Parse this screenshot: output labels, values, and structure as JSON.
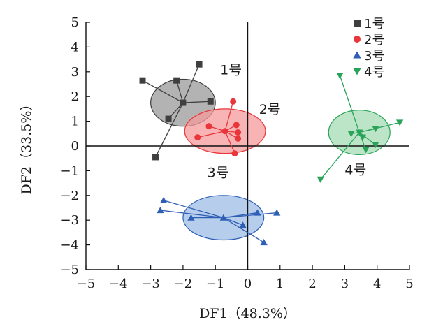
{
  "chart_data": {
    "type": "scatter",
    "xlabel": "DF1（48.3%）",
    "ylabel": "DF2（33.5%）",
    "xlim": [
      -5,
      5
    ],
    "ylim": [
      -5,
      5
    ],
    "x_ticks": [
      "−5",
      "−4",
      "−3",
      "−2",
      "−1",
      "0",
      "1",
      "2",
      "3",
      "4",
      "5"
    ],
    "y_ticks": [
      "−5",
      "−4",
      "−3",
      "−2",
      "−1",
      "0",
      "1",
      "2",
      "3",
      "4",
      "5"
    ],
    "legend_position": "top-right",
    "series": [
      {
        "name": "1号",
        "label": "1号",
        "marker": "square",
        "color": "#3f3f3f",
        "ellipse_fill": "#9a9a9a",
        "centroid": [
          -2.0,
          1.75
        ],
        "ellipse_radii": [
          1.0,
          0.95
        ],
        "points": [
          [
            -3.25,
            2.65
          ],
          [
            -2.2,
            2.65
          ],
          [
            -1.5,
            3.3
          ],
          [
            -1.15,
            1.8
          ],
          [
            -2.45,
            1.1
          ],
          [
            -2.85,
            -0.45
          ]
        ]
      },
      {
        "name": "2号",
        "label": "2号",
        "marker": "circle",
        "color": "#e8363b",
        "ellipse_fill": "#f59a9c",
        "centroid": [
          -0.7,
          0.6
        ],
        "ellipse_radii": [
          1.25,
          0.9
        ],
        "points": [
          [
            -0.45,
            1.8
          ],
          [
            -1.2,
            0.8
          ],
          [
            -0.35,
            0.85
          ],
          [
            -1.55,
            0.35
          ],
          [
            -0.3,
            0.55
          ],
          [
            -0.3,
            0.3
          ],
          [
            -0.4,
            -0.3
          ]
        ]
      },
      {
        "name": "3号",
        "label": "3号",
        "marker": "triangle-up",
        "color": "#2e5fb5",
        "ellipse_fill": "#9dbde6",
        "centroid": [
          -0.75,
          -2.9
        ],
        "ellipse_radii": [
          1.25,
          0.9
        ],
        "points": [
          [
            -2.6,
            -2.2
          ],
          [
            -2.7,
            -2.6
          ],
          [
            -1.75,
            -2.9
          ],
          [
            -0.15,
            -3.2
          ],
          [
            0.3,
            -2.7
          ],
          [
            0.9,
            -2.7
          ],
          [
            0.5,
            -3.9
          ]
        ]
      },
      {
        "name": "4号",
        "label": "4号",
        "marker": "triangle-down",
        "color": "#2aa35a",
        "ellipse_fill": "#a6dcb6",
        "centroid": [
          3.45,
          0.55
        ],
        "ellipse_radii": [
          0.95,
          0.9
        ],
        "points": [
          [
            2.85,
            2.85
          ],
          [
            4.7,
            0.95
          ],
          [
            3.2,
            0.5
          ],
          [
            3.95,
            0.7
          ],
          [
            3.55,
            0.35
          ],
          [
            3.95,
            0.05
          ],
          [
            3.65,
            -0.15
          ],
          [
            2.25,
            -1.35
          ]
        ]
      }
    ]
  }
}
